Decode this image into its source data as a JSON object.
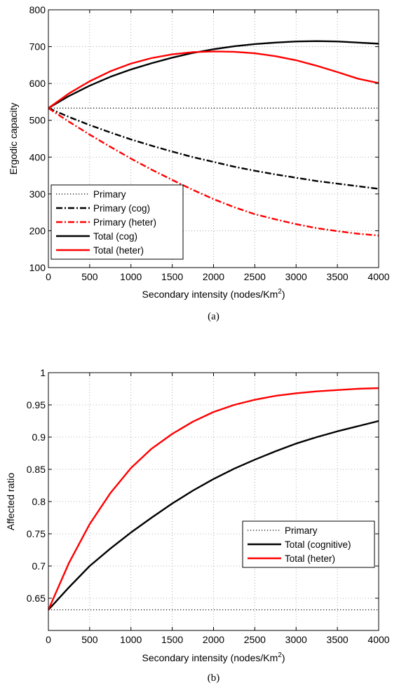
{
  "chart_data": [
    {
      "type": "line",
      "panel": "(a)",
      "xlabel": "Secondary intensity (nodes/Km",
      "xlabel_sup": "2",
      "xlabel_end": ")",
      "ylabel": "Ergodic capacity",
      "xlim": [
        0,
        4000
      ],
      "ylim": [
        100,
        800
      ],
      "xticks": [
        0,
        500,
        1000,
        1500,
        2000,
        2500,
        3000,
        3500,
        4000
      ],
      "yticks": [
        100,
        200,
        300,
        400,
        500,
        600,
        700,
        800
      ],
      "grid": true,
      "legend_position": "bottom-left",
      "x": [
        0,
        250,
        500,
        750,
        1000,
        1250,
        1500,
        1750,
        2000,
        2250,
        2500,
        2750,
        3000,
        3250,
        3500,
        3750,
        4000
      ],
      "series": [
        {
          "name": "Primary",
          "style": "dotted",
          "color": "#000000",
          "values": [
            533,
            533,
            533,
            533,
            533,
            533,
            533,
            533,
            533,
            533,
            533,
            533,
            533,
            533,
            533,
            533,
            533
          ]
        },
        {
          "name": "Primary (cog)",
          "style": "dashdot",
          "color": "#000000",
          "values": [
            533,
            509,
            487,
            467,
            448,
            431,
            415,
            400,
            387,
            374,
            363,
            353,
            344,
            335,
            328,
            321,
            314
          ]
        },
        {
          "name": "Primary (heter)",
          "style": "dashdot",
          "color": "#ff0000",
          "values": [
            533,
            496,
            461,
            428,
            396,
            366,
            338,
            311,
            286,
            264,
            245,
            231,
            218,
            207,
            199,
            192,
            187
          ]
        },
        {
          "name": "Total (cog)",
          "style": "solid",
          "color": "#000000",
          "values": [
            533,
            566,
            594,
            618,
            638,
            655,
            670,
            683,
            693,
            701,
            707,
            711,
            714,
            715,
            714,
            711,
            708
          ]
        },
        {
          "name": "Total (heter)",
          "style": "solid",
          "color": "#ff0000",
          "values": [
            533,
            573,
            606,
            633,
            654,
            669,
            679,
            685,
            687,
            686,
            682,
            674,
            663,
            648,
            631,
            613,
            601
          ]
        }
      ]
    },
    {
      "type": "line",
      "panel": "(b)",
      "xlabel": "Secondary intensity (nodes/Km",
      "xlabel_sup": "2",
      "xlabel_end": ")",
      "ylabel": "Affected ratio",
      "xlim": [
        0,
        4000
      ],
      "ylim": [
        0.6,
        1.0
      ],
      "xticks": [
        0,
        500,
        1000,
        1500,
        2000,
        2500,
        3000,
        3500,
        4000
      ],
      "yticks": [
        0.65,
        0.7,
        0.75,
        0.8,
        0.85,
        0.9,
        0.95,
        1
      ],
      "ytick_labels": [
        "0.65",
        "0.7",
        "0.75",
        "0.8",
        "0.85",
        "0.9",
        "0.95",
        "1"
      ],
      "grid": true,
      "legend_position": "right",
      "x": [
        0,
        250,
        500,
        750,
        1000,
        1250,
        1500,
        1750,
        2000,
        2250,
        2500,
        2750,
        3000,
        3250,
        3500,
        3750,
        4000
      ],
      "series": [
        {
          "name": "Primary",
          "style": "dotted",
          "color": "#000000",
          "values": [
            0.632,
            0.632,
            0.632,
            0.632,
            0.632,
            0.632,
            0.632,
            0.632,
            0.632,
            0.632,
            0.632,
            0.632,
            0.632,
            0.632,
            0.632,
            0.632,
            0.632
          ]
        },
        {
          "name": "Total (cognitive)",
          "style": "solid",
          "color": "#000000",
          "values": [
            0.632,
            0.667,
            0.7,
            0.727,
            0.752,
            0.775,
            0.797,
            0.817,
            0.835,
            0.851,
            0.865,
            0.878,
            0.89,
            0.9,
            0.909,
            0.917,
            0.925
          ]
        },
        {
          "name": "Total (heter)",
          "style": "solid",
          "color": "#ff0000",
          "values": [
            0.632,
            0.705,
            0.765,
            0.813,
            0.852,
            0.882,
            0.905,
            0.924,
            0.939,
            0.95,
            0.958,
            0.964,
            0.968,
            0.971,
            0.973,
            0.975,
            0.976
          ]
        }
      ]
    }
  ]
}
